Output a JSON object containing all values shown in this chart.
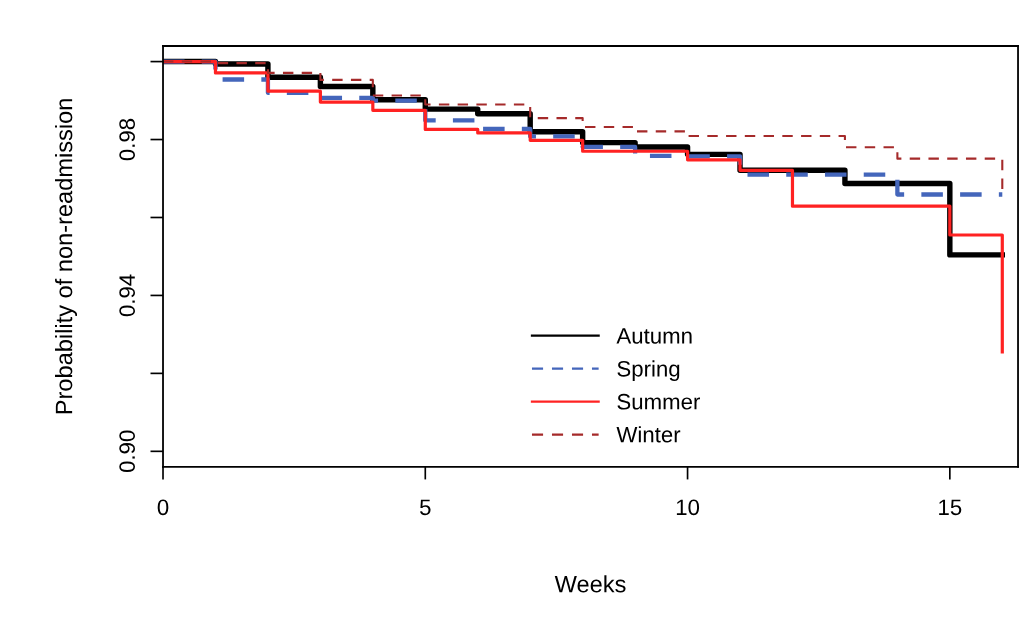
{
  "chart_data": {
    "type": "step",
    "xlabel": "Weeks",
    "ylabel": "Probability of non-readmission",
    "x": [
      0,
      1,
      2,
      3,
      4,
      5,
      6,
      7,
      8,
      9,
      10,
      11,
      12,
      13,
      14,
      15,
      16
    ],
    "series": [
      {
        "name": "Autumn",
        "color": "#000000",
        "line_style": "solid",
        "values": [
          1.0,
          0.9994,
          0.996,
          0.9936,
          0.9902,
          0.9878,
          0.9866,
          0.982,
          0.9792,
          0.9781,
          0.9762,
          0.9721,
          0.9721,
          0.9687,
          0.9687,
          0.9504,
          0.9504
        ]
      },
      {
        "name": "Spring",
        "color": "#4466bb",
        "line_style": "dashed",
        "values": [
          1.0,
          0.9954,
          0.992,
          0.9907,
          0.99,
          0.9849,
          0.9827,
          0.9808,
          0.9781,
          0.9758,
          0.9757,
          0.971,
          0.971,
          0.971,
          0.9659,
          0.9659,
          0.9659
        ]
      },
      {
        "name": "Summer",
        "color": "#ff2222",
        "line_style": "solid",
        "values": [
          1.0,
          0.9971,
          0.9924,
          0.9896,
          0.9875,
          0.9826,
          0.9817,
          0.9798,
          0.977,
          0.977,
          0.9748,
          0.9721,
          0.9629,
          0.9629,
          0.9629,
          0.9555,
          0.9255
        ]
      },
      {
        "name": "Winter",
        "color": "#a52a2a",
        "line_style": "dashed",
        "values": [
          1.0,
          0.9996,
          0.9971,
          0.9953,
          0.9913,
          0.989,
          0.989,
          0.9855,
          0.9832,
          0.9821,
          0.9809,
          0.9809,
          0.9809,
          0.978,
          0.9751,
          0.9751,
          0.967
        ]
      }
    ],
    "xlim": [
      0,
      16.3
    ],
    "ylim": [
      0.896,
      1.004
    ],
    "xticks": [
      0,
      5,
      10,
      15
    ],
    "yticks": [
      {
        "value": 0.9,
        "label": "0.90"
      },
      {
        "value": 0.92,
        "label": null
      },
      {
        "value": 0.94,
        "label": "0.94"
      },
      {
        "value": 0.96,
        "label": null
      },
      {
        "value": 0.98,
        "label": "0.98"
      },
      {
        "value": 1.0,
        "label": null
      }
    ],
    "grid": false,
    "legend": "bottom"
  }
}
